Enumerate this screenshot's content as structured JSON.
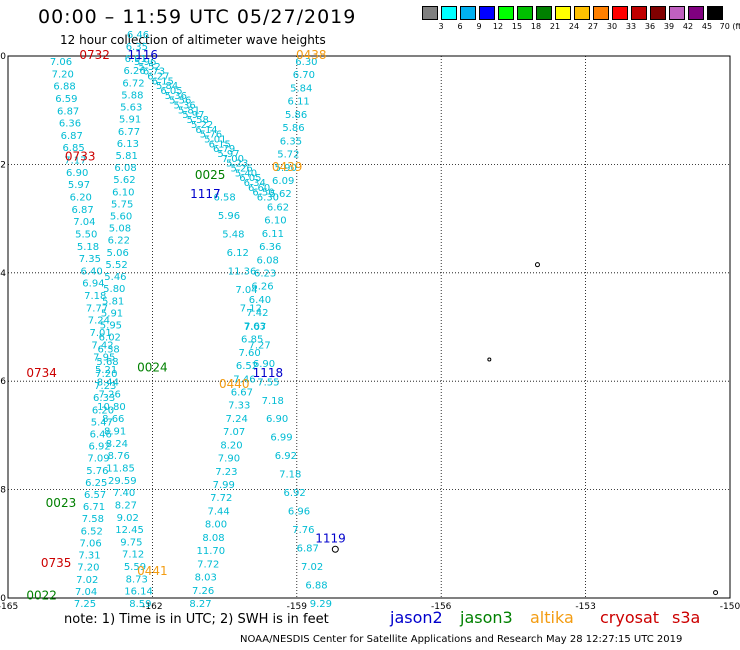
{
  "title": "00:00 – 11:59 UTC 05/27/2019",
  "subtitle": "12 hour collection of altimeter wave heights",
  "colorbar": {
    "colors": [
      "#808080",
      "#00ffff",
      "#00b0f0",
      "#0000ff",
      "#00ff00",
      "#00c000",
      "#008000",
      "#ffff00",
      "#ffc000",
      "#ff8000",
      "#ff0000",
      "#c00000",
      "#800000",
      "#c060c0",
      "#800080",
      "#000000"
    ],
    "labels": [
      "3",
      "6",
      "9",
      "12",
      "15",
      "18",
      "21",
      "24",
      "27",
      "30",
      "33",
      "36",
      "39",
      "42",
      "45",
      "70 (ft)"
    ]
  },
  "axes": {
    "x_ticks": [
      "-165",
      "-162",
      "-159",
      "-156",
      "-153",
      "-150"
    ],
    "y_ticks": [
      "0",
      "-2",
      "-4",
      "-6",
      "-8",
      "-10"
    ]
  },
  "tracks": [
    {
      "name": "track-jason2-1116",
      "satellite": "jason2",
      "time": "1116",
      "color": "#0000cc",
      "start": [
        -162.15,
        0
      ],
      "end": [
        -159.6,
        -2.5
      ],
      "swh": [
        "5.96",
        "5.52",
        "6.73",
        "6.27",
        "6.15",
        "5.84",
        "6.05",
        "5.36",
        "5.56",
        "5.36",
        "5.81",
        "5.97",
        "5.58",
        "5.22",
        "6.14",
        "5.76",
        "5.01",
        "6.15",
        "6.79",
        "5.97",
        "7.00",
        "5.23",
        "5.26",
        "5.40",
        "6.05",
        "6.34",
        "6.60",
        "6.50",
        "6.30"
      ]
    },
    {
      "name": "track-s3a-0732",
      "satellite": "s3a",
      "time": "0732",
      "color": "#cc0000",
      "start": [
        -163.9,
        0
      ],
      "end": [
        -162.25,
        -10
      ],
      "swh": [
        "7.06",
        "7.20",
        "6.88",
        "6.59",
        "6.87",
        "6.36",
        "6.87",
        "6.85",
        "7.17",
        "6.90",
        "5.97",
        "6.20",
        "6.87",
        "7.04",
        "5.50",
        "5.18",
        "7.35",
        "6.40",
        "6.94",
        "7.18",
        "7.77",
        "7.24",
        "7.01",
        "7.42",
        "7.95",
        "5.21",
        "8.44",
        "7.26",
        "10.80",
        "8.66",
        "8.91",
        "8.24",
        "8.76",
        "11.85",
        "29.59",
        "7.40",
        "8.27",
        "9.02",
        "12.45",
        "9.75",
        "7.12",
        "5.59",
        "8.73",
        "16.14",
        "8.59"
      ]
    },
    {
      "name": "track-jason3-0023",
      "satellite": "jason3",
      "time": "0023",
      "color": "#008000",
      "start": [
        -162.3,
        0.5
      ],
      "end": [
        -163.4,
        -10
      ],
      "swh": [
        "6.46",
        "6.35",
        "6.91",
        "6.26",
        "6.72",
        "5.88",
        "5.63",
        "5.91",
        "6.77",
        "6.13",
        "5.81",
        "6.08",
        "5.62",
        "6.10",
        "5.75",
        "5.60",
        "5.08",
        "6.22",
        "5.06",
        "5.52",
        "5.46",
        "5.80",
        "5.81",
        "5.91",
        "5.95",
        "6.02",
        "6.38",
        "5.68",
        "7.20",
        "7.23",
        "6.33",
        "6.20",
        "5.47",
        "6.46",
        "6.92",
        "7.09",
        "5.76",
        "6.25",
        "6.57",
        "6.71",
        "7.58",
        "6.52",
        "7.06",
        "7.31",
        "7.20",
        "7.02",
        "7.04",
        "7.25"
      ]
    },
    {
      "name": "track-altika-0439",
      "satellite": "altika",
      "time": "0439",
      "color": "#f39c12",
      "start": [
        -158.8,
        0
      ],
      "end": [
        -161.0,
        -10
      ],
      "swh": [
        "6.30",
        "6.70",
        "5.84",
        "6.11",
        "5.86",
        "5.86",
        "6.35",
        "5.72",
        "5.90",
        "6.09",
        "5.62",
        "6.62",
        "6.10",
        "6.11",
        "6.36",
        "6.08",
        "6.23",
        "6.26",
        "6.40",
        "7.42",
        "7.63",
        "6.85",
        "7.60",
        "6.52",
        "7.46",
        "6.67",
        "7.33",
        "7.24",
        "7.07",
        "8.20",
        "7.90",
        "7.23",
        "7.99",
        "7.72",
        "7.44",
        "8.00",
        "8.08",
        "11.70",
        "7.72",
        "8.03",
        "7.26",
        "8.27"
      ]
    },
    {
      "name": "track-jason2-1117",
      "satellite": "jason2",
      "time": "1117",
      "color": "#0000cc",
      "start": [
        -160.5,
        -2.5
      ],
      "end": [
        -158.5,
        -10
      ],
      "swh": [
        "6.58",
        "5.96",
        "5.48",
        "6.12",
        "11.36",
        "7.04",
        "7.12",
        "7.07",
        "7.27",
        "6.90",
        "7.55",
        "7.18",
        "6.90",
        "6.99",
        "6.92",
        "7.18",
        "6.92",
        "6.96",
        "7.76",
        "6.87",
        "7.02",
        "6.88",
        "9.29"
      ]
    }
  ],
  "track_labels": [
    {
      "text": "0732",
      "color": "#cc0000",
      "lon": -163.2,
      "lat": 0.02
    },
    {
      "text": "1116",
      "color": "#0000cc",
      "lon": -162.2,
      "lat": 0.02
    },
    {
      "text": "0438",
      "color": "#f39c12",
      "lon": -158.7,
      "lat": 0.02
    },
    {
      "text": "0733",
      "color": "#cc0000",
      "lon": -163.5,
      "lat": -1.85
    },
    {
      "text": "0439",
      "color": "#f39c12",
      "lon": -159.2,
      "lat": -2.05
    },
    {
      "text": "0025",
      "color": "#008000",
      "lon": -160.8,
      "lat": -2.2
    },
    {
      "text": "1117",
      "color": "#0000cc",
      "lon": -160.9,
      "lat": -2.55
    },
    {
      "text": "0024",
      "color": "#008000",
      "lon": -162.0,
      "lat": -5.75
    },
    {
      "text": "0734",
      "color": "#cc0000",
      "lon": -164.3,
      "lat": -5.85
    },
    {
      "text": "1118",
      "color": "#0000cc",
      "lon": -159.6,
      "lat": -5.85
    },
    {
      "text": "0440",
      "color": "#f39c12",
      "lon": -160.3,
      "lat": -6.05
    },
    {
      "text": "0023",
      "color": "#008000",
      "lon": -163.9,
      "lat": -8.25
    },
    {
      "text": "1119",
      "color": "#0000cc",
      "lon": -158.3,
      "lat": -8.9
    },
    {
      "text": "0735",
      "color": "#cc0000",
      "lon": -164.0,
      "lat": -9.35
    },
    {
      "text": "0441",
      "color": "#f39c12",
      "lon": -162.0,
      "lat": -9.5
    },
    {
      "text": "0022",
      "color": "#008000",
      "lon": -164.3,
      "lat": -9.95
    }
  ],
  "note": "note:  1) Time is in UTC;  2) SWH is in feet",
  "satellites": [
    {
      "label": "jason2",
      "color": "#0000cc"
    },
    {
      "label": "jason3",
      "color": "#008000"
    },
    {
      "label": "altika",
      "color": "#f39c12"
    },
    {
      "label": "cryosat",
      "color": "#cc0000"
    },
    {
      "label": "s3a",
      "color": "#cc0000"
    }
  ],
  "credit": "NOAA/NESDIS Center for Satellite Applications and Research    May 28 12:27:15 UTC 2019"
}
